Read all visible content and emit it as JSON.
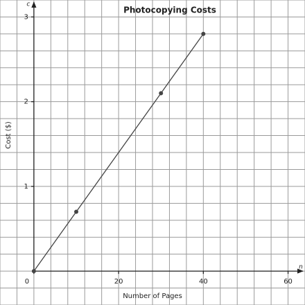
{
  "chart_data": {
    "type": "line",
    "title": "Photocopying Costs",
    "x_label": "Number of Pages",
    "y_label": "Cost ($)",
    "x_axis_variable": "n",
    "y_axis_variable": "c",
    "x": [
      0,
      10,
      30,
      40
    ],
    "series": [
      {
        "name": "Cost",
        "color": "#444444",
        "values": [
          0,
          0.7,
          2.1,
          2.8
        ]
      }
    ],
    "xlim": [
      -8,
      64
    ],
    "ylim": [
      -0.4,
      3.2
    ],
    "xticks": [
      0,
      20,
      40,
      60
    ],
    "yticks": [
      1,
      2,
      3
    ],
    "grid": true,
    "x_grid_step": 4,
    "y_grid_step": 0.2
  }
}
